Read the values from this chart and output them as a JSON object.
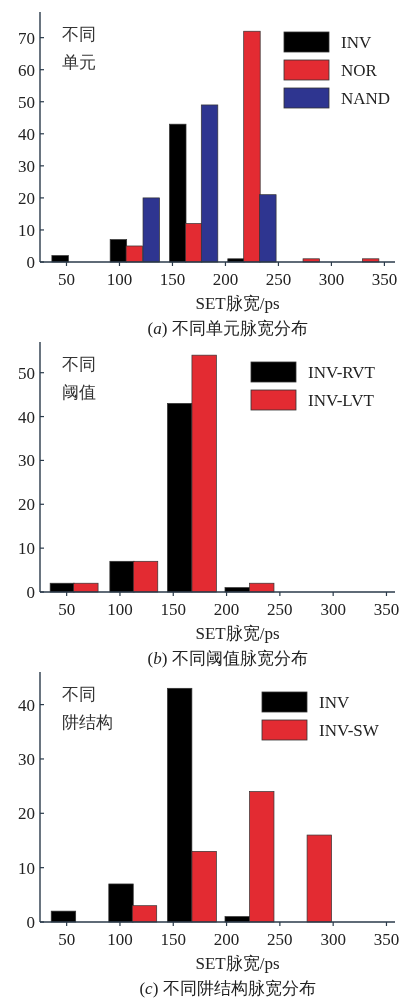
{
  "chart_data": [
    {
      "type": "bar",
      "title": "(*a*) 不同单元脉宽分布",
      "xlabel": "SET脉宽/ps",
      "annotations": [
        "不同",
        "单元"
      ],
      "legend": "top right",
      "xlim": [
        25,
        360
      ],
      "ylim": [
        0,
        78
      ],
      "xticks": [
        50,
        100,
        150,
        200,
        250,
        300,
        350
      ],
      "yticks": [
        0,
        10,
        20,
        30,
        40,
        50,
        60,
        70
      ],
      "series": [
        {
          "name": "INV",
          "color": "#000000",
          "x": [
            44,
            99,
            155,
            210
          ],
          "values": [
            2,
            7,
            43,
            1
          ]
        },
        {
          "name": "NOR",
          "color": "#e32b32",
          "x": [
            114,
            170,
            225,
            281,
            337
          ],
          "values": [
            5,
            12,
            72,
            1,
            1
          ]
        },
        {
          "name": "NAND",
          "color": "#2e3590",
          "x": [
            130,
            185,
            240
          ],
          "values": [
            20,
            49,
            21
          ]
        }
      ]
    },
    {
      "type": "bar",
      "title": "(*b*) 不同阈值脉宽分布",
      "xlabel": "SET脉宽/ps",
      "annotations": [
        "不同",
        "阈值"
      ],
      "legend": "top right",
      "xlim": [
        25,
        358
      ],
      "ylim": [
        0,
        57
      ],
      "xticks": [
        50,
        100,
        150,
        200,
        250,
        300,
        350
      ],
      "yticks": [
        0,
        10,
        20,
        30,
        40,
        50
      ],
      "series": [
        {
          "name": "INV-RVT",
          "color": "#000000",
          "x": [
            46,
            102,
            156,
            210
          ],
          "values": [
            2,
            7,
            43,
            1
          ]
        },
        {
          "name": "INV-LVT",
          "color": "#e32b32",
          "x": [
            68,
            124,
            179,
            233
          ],
          "values": [
            2,
            7,
            54,
            2
          ]
        }
      ]
    },
    {
      "type": "bar",
      "title": "(*c*) 不同阱结构脉宽分布",
      "xlabel": "SET脉宽/ps",
      "annotations": [
        "不同",
        "阱结构"
      ],
      "legend": "top right",
      "xlim": [
        25,
        358
      ],
      "ylim": [
        0,
        46
      ],
      "xticks": [
        50,
        100,
        150,
        200,
        250,
        300,
        350
      ],
      "yticks": [
        0,
        10,
        20,
        30,
        40
      ],
      "series": [
        {
          "name": "INV",
          "color": "#000000",
          "x": [
            47,
            101,
            156,
            210
          ],
          "values": [
            2,
            7,
            43,
            1
          ]
        },
        {
          "name": "INV-SW",
          "color": "#e32b32",
          "x": [
            123,
            179,
            233,
            287
          ],
          "values": [
            3,
            13,
            24,
            16
          ]
        }
      ]
    }
  ]
}
